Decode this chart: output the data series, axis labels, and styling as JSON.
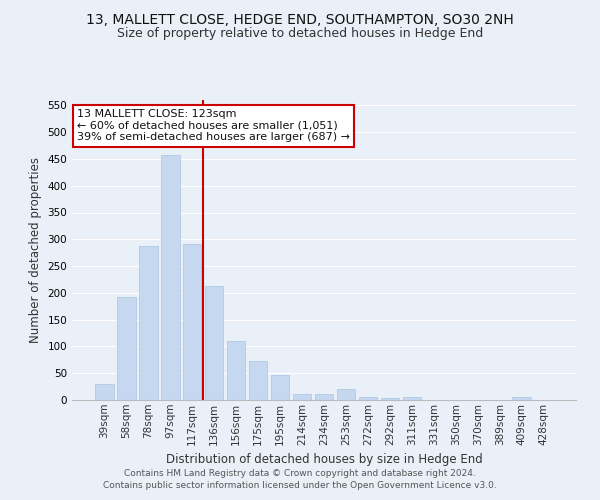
{
  "title": "13, MALLETT CLOSE, HEDGE END, SOUTHAMPTON, SO30 2NH",
  "subtitle": "Size of property relative to detached houses in Hedge End",
  "xlabel": "Distribution of detached houses by size in Hedge End",
  "ylabel": "Number of detached properties",
  "categories": [
    "39sqm",
    "58sqm",
    "78sqm",
    "97sqm",
    "117sqm",
    "136sqm",
    "156sqm",
    "175sqm",
    "195sqm",
    "214sqm",
    "234sqm",
    "253sqm",
    "272sqm",
    "292sqm",
    "311sqm",
    "331sqm",
    "350sqm",
    "370sqm",
    "389sqm",
    "409sqm",
    "428sqm"
  ],
  "values": [
    30,
    192,
    287,
    458,
    291,
    212,
    110,
    73,
    46,
    12,
    12,
    20,
    6,
    4,
    6,
    0,
    0,
    0,
    0,
    5,
    0
  ],
  "bar_color": "#c5d8f0",
  "bar_edgecolor": "#a8c4e0",
  "vline_color": "#cc0000",
  "annotation_box_text": "13 MALLETT CLOSE: 123sqm\n← 60% of detached houses are smaller (1,051)\n39% of semi-detached houses are larger (687) →",
  "annotation_box_edgecolor": "#cc0000",
  "annotation_box_facecolor": "white",
  "ylim": [
    0,
    560
  ],
  "yticks": [
    0,
    50,
    100,
    150,
    200,
    250,
    300,
    350,
    400,
    450,
    500,
    550
  ],
  "background_color": "#eaf0f8",
  "grid_color": "white",
  "footer_line1": "Contains HM Land Registry data © Crown copyright and database right 2024.",
  "footer_line2": "Contains public sector information licensed under the Open Government Licence v3.0.",
  "title_fontsize": 10,
  "subtitle_fontsize": 9,
  "xlabel_fontsize": 8.5,
  "ylabel_fontsize": 8.5,
  "tick_fontsize": 7.5,
  "annotation_fontsize": 8
}
